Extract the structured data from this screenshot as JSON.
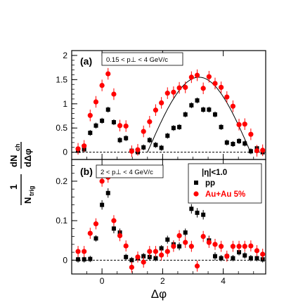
{
  "figure": {
    "x_axis_label": "Δφ",
    "y_axis_label_top": "dN",
    "y_axis_label_top_sub": "ch",
    "y_axis_label_top_den": "dΔφ",
    "y_axis_label_one": "1",
    "y_axis_label_ntrig": "N",
    "y_axis_label_ntrig_sub": "trig"
  },
  "chart_data": [
    {
      "panel": "(a)",
      "type": "scatter",
      "annotation": "0.15 < p⊥ < 4 GeV/c",
      "xlim": [
        -1.0,
        5.4
      ],
      "ylim": [
        -0.15,
        2.1
      ],
      "x_ticks": [
        0,
        2,
        4
      ],
      "y_ticks": [
        0,
        0.5,
        1,
        1.5,
        2
      ],
      "y_tick_labels": [
        "0",
        "0.5",
        "1",
        "1.5",
        "2"
      ],
      "x_tick_labels": [
        "",
        "",
        ""
      ],
      "baseline": 0,
      "series": [
        {
          "name": "pp",
          "color": "#000000",
          "marker": "square",
          "x": [
            -0.79,
            -0.59,
            -0.39,
            -0.2,
            0.0,
            0.2,
            0.39,
            0.59,
            0.79,
            0.98,
            1.18,
            1.37,
            1.57,
            1.77,
            1.96,
            2.16,
            2.36,
            2.55,
            2.75,
            2.95,
            3.14,
            3.34,
            3.53,
            3.73,
            3.93,
            4.12,
            4.32,
            4.52,
            4.71,
            4.91,
            5.11,
            5.3
          ],
          "y": [
            0.03,
            0.06,
            0.4,
            0.55,
            0.65,
            0.88,
            0.62,
            0.25,
            0.29,
            0.03,
            0.0,
            0.1,
            0.25,
            0.15,
            0.09,
            0.34,
            0.5,
            0.52,
            0.78,
            0.97,
            1.07,
            0.88,
            0.88,
            0.78,
            0.52,
            0.2,
            0.17,
            0.23,
            0.18,
            0.02,
            0.08,
            0.0
          ],
          "err": [
            0.06,
            0.06,
            0.06,
            0.06,
            0.06,
            0.06,
            0.06,
            0.06,
            0.06,
            0.06,
            0.06,
            0.06,
            0.06,
            0.06,
            0.06,
            0.06,
            0.06,
            0.06,
            0.06,
            0.06,
            0.06,
            0.06,
            0.06,
            0.06,
            0.06,
            0.06,
            0.06,
            0.06,
            0.06,
            0.06,
            0.06,
            0.06
          ]
        },
        {
          "name": "Au+Au 5%",
          "color": "#ff0000",
          "marker": "circle",
          "x": [
            -0.79,
            -0.59,
            -0.39,
            -0.2,
            0.0,
            0.2,
            0.39,
            0.59,
            0.79,
            0.98,
            1.18,
            1.37,
            1.57,
            1.77,
            1.96,
            2.16,
            2.36,
            2.55,
            2.75,
            2.95,
            3.14,
            3.34,
            3.53,
            3.73,
            3.93,
            4.12,
            4.32,
            4.52,
            4.71,
            4.91,
            5.11,
            5.3
          ],
          "y": [
            0.07,
            0.13,
            0.76,
            1.04,
            1.38,
            1.62,
            1.2,
            0.55,
            0.54,
            0.02,
            0.05,
            0.43,
            0.63,
            0.87,
            1.02,
            1.22,
            1.24,
            1.33,
            1.34,
            1.55,
            1.59,
            1.32,
            1.56,
            1.42,
            1.34,
            1.14,
            0.95,
            0.57,
            0.58,
            0.37,
            0.03,
            0.04
          ],
          "err": [
            0.12,
            0.12,
            0.12,
            0.12,
            0.12,
            0.12,
            0.12,
            0.12,
            0.12,
            0.12,
            0.12,
            0.12,
            0.12,
            0.12,
            0.12,
            0.12,
            0.12,
            0.12,
            0.12,
            0.12,
            0.12,
            0.12,
            0.12,
            0.12,
            0.12,
            0.12,
            0.12,
            0.12,
            0.12,
            0.12,
            0.12,
            0.12
          ]
        }
      ],
      "curve": {
        "type": "cosine",
        "amplitude": 1.55,
        "center": 3.2,
        "half_width": 1.7,
        "color": "#000000"
      }
    },
    {
      "panel": "(b)",
      "type": "scatter",
      "annotation": "2 < p⊥ < 4 GeV/c",
      "xlim": [
        -1.0,
        5.4
      ],
      "ylim": [
        -0.035,
        0.255
      ],
      "x_ticks": [
        0,
        2,
        4
      ],
      "x_tick_labels": [
        "0",
        "2",
        "4"
      ],
      "y_ticks": [
        0,
        0.1,
        0.2
      ],
      "y_tick_labels": [
        "0",
        "0.1",
        "0.2"
      ],
      "baseline": 0,
      "legend": {
        "position": "top-right",
        "header": "|η|<1.0",
        "entries": [
          "pp",
          "Au+Au 5%"
        ]
      },
      "series": [
        {
          "name": "pp",
          "color": "#000000",
          "marker": "square",
          "x": [
            -0.79,
            -0.59,
            -0.39,
            -0.2,
            0.0,
            0.2,
            0.39,
            0.59,
            0.79,
            0.98,
            1.18,
            1.37,
            1.57,
            1.77,
            1.96,
            2.16,
            2.36,
            2.55,
            2.75,
            2.95,
            3.14,
            3.34,
            3.53,
            3.73,
            3.93,
            4.12,
            4.32,
            4.52,
            4.71,
            4.91,
            5.11,
            5.3
          ],
          "y": [
            0.002,
            0.002,
            0.003,
            0.055,
            0.14,
            0.17,
            0.08,
            0.07,
            0.008,
            0.0,
            0.005,
            0.01,
            0.008,
            0.005,
            0.03,
            0.052,
            0.04,
            0.035,
            0.07,
            0.13,
            0.12,
            0.115,
            0.05,
            0.01,
            0.005,
            0.01,
            0.005,
            0.02,
            0.012,
            0.005,
            0.005,
            0.002
          ],
          "err": [
            0.008,
            0.008,
            0.008,
            0.008,
            0.012,
            0.012,
            0.012,
            0.01,
            0.008,
            0.008,
            0.008,
            0.008,
            0.008,
            0.008,
            0.008,
            0.01,
            0.01,
            0.01,
            0.01,
            0.012,
            0.012,
            0.012,
            0.012,
            0.01,
            0.008,
            0.008,
            0.008,
            0.008,
            0.008,
            0.008,
            0.008,
            0.008
          ]
        },
        {
          "name": "Au+Au 5%",
          "color": "#ff0000",
          "marker": "circle",
          "x": [
            -0.79,
            -0.59,
            -0.39,
            -0.2,
            0.0,
            0.2,
            0.39,
            0.59,
            0.79,
            0.98,
            1.18,
            1.37,
            1.57,
            1.77,
            1.96,
            2.16,
            2.36,
            2.55,
            2.75,
            2.95,
            3.14,
            3.34,
            3.53,
            3.73,
            3.93,
            4.12,
            4.32,
            4.52,
            4.71,
            4.91,
            5.11,
            5.3
          ],
          "y": [
            0.022,
            0.022,
            0.068,
            0.092,
            0.2,
            0.21,
            0.1,
            0.062,
            0.036,
            -0.018,
            0.008,
            -0.005,
            0.022,
            0.022,
            0.013,
            0.022,
            0.035,
            0.062,
            0.045,
            0.035,
            -0.015,
            0.06,
            0.045,
            0.04,
            0.035,
            0.01,
            0.035,
            0.035,
            0.035,
            0.036,
            0.024,
            0.015
          ],
          "err": [
            0.014,
            0.014,
            0.014,
            0.014,
            0.014,
            0.014,
            0.014,
            0.014,
            0.014,
            0.014,
            0.014,
            0.014,
            0.014,
            0.014,
            0.014,
            0.014,
            0.014,
            0.014,
            0.014,
            0.014,
            0.014,
            0.014,
            0.014,
            0.014,
            0.014,
            0.014,
            0.014,
            0.014,
            0.014,
            0.014,
            0.014,
            0.014
          ]
        }
      ]
    }
  ]
}
